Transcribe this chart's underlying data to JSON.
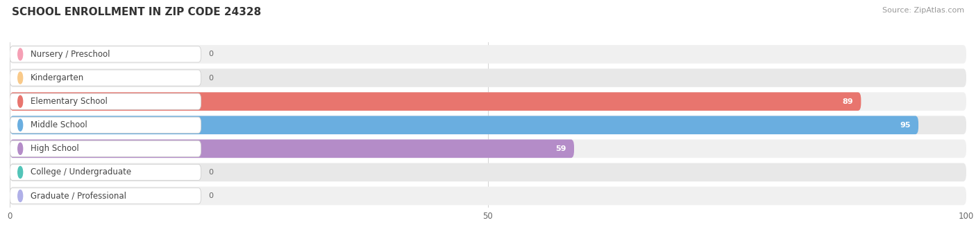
{
  "title": "SCHOOL ENROLLMENT IN ZIP CODE 24328",
  "source": "Source: ZipAtlas.com",
  "categories": [
    "Nursery / Preschool",
    "Kindergarten",
    "Elementary School",
    "Middle School",
    "High School",
    "College / Undergraduate",
    "Graduate / Professional"
  ],
  "values": [
    0,
    0,
    89,
    95,
    59,
    0,
    0
  ],
  "bar_colors": [
    "#f5a0b5",
    "#f9ca8a",
    "#e8756e",
    "#6aaee0",
    "#b48cc8",
    "#52c4b8",
    "#b0b0e8"
  ],
  "bg_row_colors": [
    "#f0f0f0",
    "#e8e8e8",
    "#f0f0f0",
    "#e8e8e8",
    "#f0f0f0",
    "#e8e8e8",
    "#f0f0f0"
  ],
  "xlim": [
    0,
    100
  ],
  "xticks": [
    0,
    50,
    100
  ],
  "figure_bg": "#ffffff",
  "title_fontsize": 11,
  "source_fontsize": 8,
  "label_fontsize": 8.5,
  "value_fontsize": 8
}
